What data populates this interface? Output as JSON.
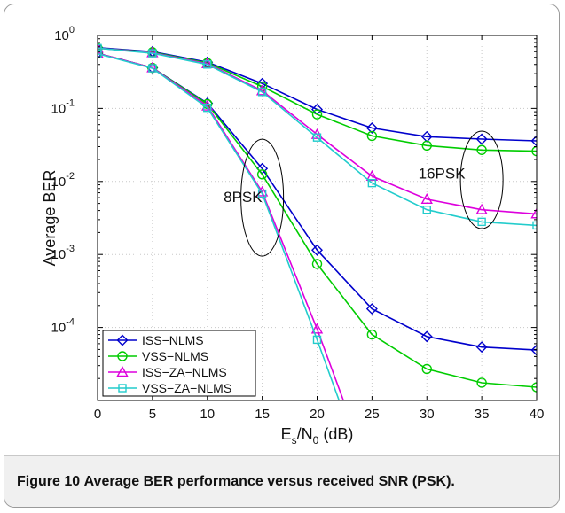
{
  "figure_caption": {
    "label": "Figure 10",
    "text": "Average BER performance versus received SNR (PSK)."
  },
  "chart_data": {
    "type": "line",
    "title": "",
    "xlabel_main": "E",
    "xlabel_sub_s": "s",
    "xlabel_slash": "/N",
    "xlabel_sub_0": "0",
    "xlabel_unit": " (dB)",
    "ylabel": "Average BER",
    "y_scale": "log",
    "xlim": [
      0,
      40
    ],
    "ylim": [
      1e-05,
      1
    ],
    "x_ticks": [
      "0",
      "5",
      "10",
      "15",
      "20",
      "25",
      "30",
      "35",
      "40"
    ],
    "y_ticks": [
      {
        "value": 1,
        "mantissa": "10",
        "exp": "0"
      },
      {
        "value": 0.1,
        "mantissa": "10",
        "exp": "-1"
      },
      {
        "value": 0.01,
        "mantissa": "10",
        "exp": "-2"
      },
      {
        "value": 0.001,
        "mantissa": "10",
        "exp": "-3"
      },
      {
        "value": 0.0001,
        "mantissa": "10",
        "exp": "-4"
      }
    ],
    "grid": true,
    "legend_position": "bottom-left",
    "annotations": [
      {
        "text": "8PSK",
        "x": 15,
        "y": 0.0052
      },
      {
        "text": "16PSK",
        "x": 33.5,
        "y": 0.011
      }
    ],
    "ellipse_8psk": {
      "center_x": 15,
      "center_y": 0.006
    },
    "ellipse_16psk": {
      "center_x": 35,
      "center_y": 0.0105
    },
    "series": [
      {
        "name": "ISS−NLMS",
        "color": "#0000cc",
        "marker": "diamond",
        "groups": [
          {
            "x": [
              0,
              5,
              10,
              15,
              20,
              25,
              30,
              35,
              40
            ],
            "y": [
              0.68,
              0.6,
              0.43,
              0.22,
              0.097,
              0.054,
              0.041,
              0.038,
              0.036
            ]
          },
          {
            "x": [
              0,
              5,
              10,
              15,
              20,
              25,
              30,
              35,
              40
            ],
            "y": [
              0.57,
              0.36,
              0.118,
              0.015,
              0.00115,
              0.00018,
              7.5e-05,
              5.4e-05,
              4.9e-05
            ]
          }
        ]
      },
      {
        "name": "VSS−NLMS",
        "color": "#00cc00",
        "marker": "circle",
        "groups": [
          {
            "x": [
              0,
              5,
              10,
              15,
              20,
              25,
              30,
              35,
              40
            ],
            "y": [
              0.67,
              0.59,
              0.42,
              0.2,
              0.083,
              0.042,
              0.031,
              0.027,
              0.026
            ]
          },
          {
            "x": [
              0,
              5,
              10,
              15,
              20,
              25,
              30,
              35,
              40
            ],
            "y": [
              0.57,
              0.36,
              0.115,
              0.0125,
              0.00074,
              8e-05,
              2.7e-05,
              1.75e-05,
              1.52e-05
            ]
          }
        ]
      },
      {
        "name": "ISS−ZA−NLMS",
        "color": "#dd00dd",
        "marker": "triangle",
        "groups": [
          {
            "x": [
              0,
              5,
              10,
              15,
              20,
              25,
              30,
              35,
              40
            ],
            "y": [
              0.67,
              0.58,
              0.41,
              0.175,
              0.044,
              0.0118,
              0.0057,
              0.0041,
              0.0036
            ]
          },
          {
            "x": [
              0,
              5,
              10,
              15,
              20,
              22.4
            ],
            "y": [
              0.57,
              0.36,
              0.108,
              0.0072,
              9.5e-05,
              1e-05
            ]
          }
        ]
      },
      {
        "name": "VSS−ZA−NLMS",
        "color": "#22cccc",
        "marker": "square",
        "groups": [
          {
            "x": [
              0,
              5,
              10,
              15,
              20,
              25,
              30,
              35,
              40
            ],
            "y": [
              0.67,
              0.57,
              0.4,
              0.168,
              0.04,
              0.0095,
              0.0041,
              0.0028,
              0.0025
            ]
          },
          {
            "x": [
              0,
              5,
              10,
              15,
              20,
              22.0
            ],
            "y": [
              0.56,
              0.355,
              0.102,
              0.0068,
              6.8e-05,
              1e-05
            ]
          }
        ]
      }
    ]
  }
}
